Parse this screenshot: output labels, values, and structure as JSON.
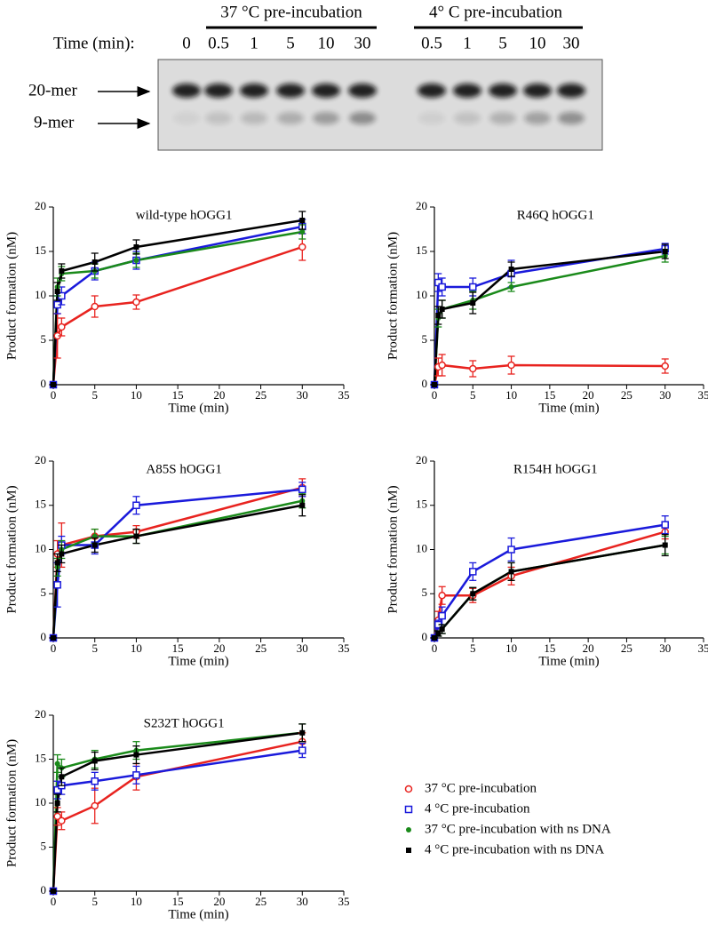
{
  "gel": {
    "conditions": [
      "37 °C pre-incubation",
      "4° C pre-incubation"
    ],
    "time_label": "Time (min):",
    "lanes": [
      "0",
      "0.5",
      "1",
      "5",
      "10",
      "30",
      "0.5",
      "1",
      "5",
      "10",
      "30"
    ],
    "bands": [
      "20-mer",
      "9-mer"
    ]
  },
  "chart_data": [
    {
      "type": "line",
      "title": "wild-type hOGG1",
      "xlabel": "Time (min)",
      "ylabel": "Product formation (nM)",
      "x": [
        0,
        0.5,
        1,
        5,
        10,
        30
      ],
      "xlim": [
        0,
        35
      ],
      "xticks": [
        0,
        5,
        10,
        15,
        20,
        25,
        30,
        35
      ],
      "ylim": [
        0,
        20
      ],
      "yticks": [
        0,
        5,
        10,
        15,
        20
      ],
      "series": [
        {
          "color": "#e8231f",
          "marker": "circle-open",
          "values": [
            0,
            5.5,
            6.5,
            8.8,
            9.3,
            15.5
          ],
          "errors": [
            0,
            2.5,
            1,
            1.2,
            0.8,
            1.5
          ]
        },
        {
          "color": "#1a1adb",
          "marker": "square-open",
          "values": [
            0,
            9,
            10,
            12.8,
            14,
            17.8
          ],
          "errors": [
            0,
            1,
            1,
            1,
            1,
            0.8
          ]
        },
        {
          "color": "#1a8a1a",
          "marker": "circle-filled",
          "values": [
            0,
            11,
            12.5,
            12.8,
            14,
            17.2
          ],
          "errors": [
            0,
            1,
            0.8,
            0.8,
            0.8,
            0.8
          ]
        },
        {
          "color": "#000000",
          "marker": "square-filled",
          "values": [
            0,
            10.5,
            12.8,
            13.8,
            15.5,
            18.5
          ],
          "errors": [
            0,
            1,
            0.8,
            1,
            0.8,
            1
          ]
        }
      ]
    },
    {
      "type": "line",
      "title": "R46Q hOGG1",
      "xlabel": "Time (min)",
      "ylabel": "Product formation (nM)",
      "x": [
        0,
        0.5,
        1,
        5,
        10,
        30
      ],
      "xlim": [
        0,
        35
      ],
      "xticks": [
        0,
        5,
        10,
        15,
        20,
        25,
        30,
        35
      ],
      "ylim": [
        0,
        20
      ],
      "yticks": [
        0,
        5,
        10,
        15,
        20
      ],
      "series": [
        {
          "color": "#e8231f",
          "marker": "circle-open",
          "values": [
            0,
            2,
            2.2,
            1.8,
            2.2,
            2.1
          ],
          "errors": [
            0,
            1,
            1.2,
            0.9,
            1,
            0.8
          ]
        },
        {
          "color": "#1a1adb",
          "marker": "square-open",
          "values": [
            0,
            11.5,
            11,
            11,
            12.5,
            15.3
          ],
          "errors": [
            0,
            1,
            1,
            1,
            1.5,
            0.6
          ]
        },
        {
          "color": "#1a8a1a",
          "marker": "circle-filled",
          "values": [
            0,
            7.5,
            8.5,
            9.5,
            11,
            14.5
          ],
          "errors": [
            0,
            1,
            1,
            1,
            0.5,
            0.7
          ]
        },
        {
          "color": "#000000",
          "marker": "square-filled",
          "values": [
            0,
            7.8,
            8.5,
            9.2,
            13,
            15
          ],
          "errors": [
            0,
            1,
            1,
            1.2,
            0.8,
            0.8
          ]
        }
      ]
    },
    {
      "type": "line",
      "title": "A85S hOGG1",
      "xlabel": "Time (min)",
      "ylabel": "Product formation (nM)",
      "x": [
        0,
        0.5,
        1,
        5,
        10,
        30
      ],
      "xlim": [
        0,
        35
      ],
      "xticks": [
        0,
        5,
        10,
        15,
        20,
        25,
        30,
        35
      ],
      "ylim": [
        0,
        20
      ],
      "yticks": [
        0,
        5,
        10,
        15,
        20
      ],
      "series": [
        {
          "color": "#e8231f",
          "marker": "circle-open",
          "values": [
            0,
            9.5,
            10.5,
            11.5,
            12,
            17
          ],
          "errors": [
            0,
            1.5,
            2.5,
            0.8,
            0.7,
            1
          ]
        },
        {
          "color": "#1a1adb",
          "marker": "square-open",
          "values": [
            0,
            6,
            10.5,
            10.5,
            15,
            16.8
          ],
          "errors": [
            0,
            2.5,
            1,
            1,
            1,
            0.8
          ]
        },
        {
          "color": "#1a8a1a",
          "marker": "circle-filled",
          "values": [
            0,
            8,
            10,
            11.5,
            11.5,
            15.5
          ],
          "errors": [
            0,
            1,
            1,
            0.8,
            0.8,
            0.8
          ]
        },
        {
          "color": "#000000",
          "marker": "square-filled",
          "values": [
            0,
            8.5,
            9.5,
            10.5,
            11.5,
            15
          ],
          "errors": [
            0,
            1,
            1,
            0.8,
            0.8,
            1.2
          ]
        }
      ]
    },
    {
      "type": "line",
      "title": "R154H hOGG1",
      "xlabel": "Time (min)",
      "ylabel": "Product formation (nM)",
      "x": [
        0,
        0.5,
        1,
        5,
        10,
        30
      ],
      "xlim": [
        0,
        35
      ],
      "xticks": [
        0,
        5,
        10,
        15,
        20,
        25,
        30,
        35
      ],
      "ylim": [
        0,
        20
      ],
      "yticks": [
        0,
        5,
        10,
        15,
        20
      ],
      "series": [
        {
          "color": "#e8231f",
          "marker": "circle-open",
          "values": [
            0,
            2,
            4.8,
            4.8,
            7,
            12
          ],
          "errors": [
            0,
            1,
            1,
            0.8,
            1,
            0.8
          ]
        },
        {
          "color": "#1a1adb",
          "marker": "square-open",
          "values": [
            0,
            1.5,
            2.5,
            7.5,
            10,
            12.8
          ],
          "errors": [
            0,
            0.5,
            1,
            1,
            1.3,
            1
          ]
        },
        {
          "color": "#1a8a1a",
          "marker": "circle-filled",
          "values": [
            0,
            0.5,
            1,
            5,
            7.5,
            10.5
          ],
          "errors": [
            0,
            0.3,
            0.5,
            0.7,
            1,
            1
          ]
        },
        {
          "color": "#000000",
          "marker": "square-filled",
          "values": [
            0,
            0.5,
            1,
            5,
            7.5,
            10.5
          ],
          "errors": [
            0,
            0.3,
            0.5,
            0.7,
            1,
            1.2
          ]
        }
      ]
    },
    {
      "type": "line",
      "title": "S232T hOGG1",
      "xlabel": "Time (min)",
      "ylabel": "Product formation (nM)",
      "x": [
        0,
        0.5,
        1,
        5,
        10,
        30
      ],
      "xlim": [
        0,
        35
      ],
      "xticks": [
        0,
        5,
        10,
        15,
        20,
        25,
        30,
        35
      ],
      "ylim": [
        0,
        20
      ],
      "yticks": [
        0,
        5,
        10,
        15,
        20
      ],
      "series": [
        {
          "name": "37 °C pre-incubation",
          "color": "#e8231f",
          "marker": "circle-open",
          "values": [
            0,
            8.5,
            8,
            9.7,
            13,
            17
          ],
          "errors": [
            0,
            1,
            1,
            2,
            1.5,
            1
          ]
        },
        {
          "name": "4 °C pre-incubation",
          "color": "#1a1adb",
          "marker": "square-open",
          "values": [
            0,
            11.5,
            12,
            12.5,
            13.2,
            16
          ],
          "errors": [
            0,
            1,
            1,
            1,
            1,
            0.8
          ]
        },
        {
          "name": "37 °C pre-incubation with ns DNA",
          "color": "#1a8a1a",
          "marker": "circle-filled",
          "values": [
            0,
            14.5,
            14,
            15,
            16,
            18
          ],
          "errors": [
            0,
            1,
            1,
            1,
            1,
            1
          ]
        },
        {
          "name": "4 °C pre-incubation with ns DNA",
          "color": "#000000",
          "marker": "square-filled",
          "values": [
            0,
            10,
            13,
            14.8,
            15.5,
            18
          ],
          "errors": [
            0,
            1,
            1,
            1,
            1,
            1
          ]
        }
      ]
    }
  ]
}
